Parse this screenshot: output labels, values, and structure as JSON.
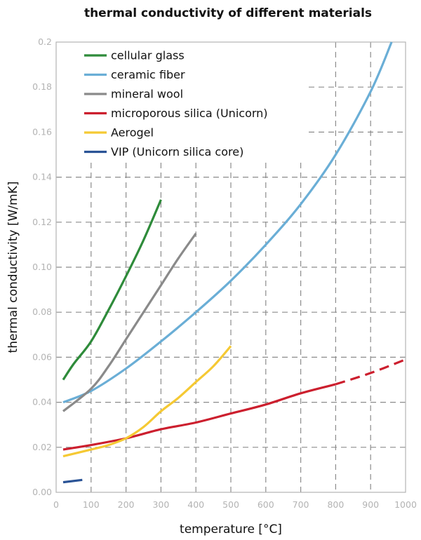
{
  "chart_data": {
    "type": "line",
    "title": "thermal conductivity of different materials",
    "xlabel": "temperature [°C]",
    "ylabel": "thermal conductivity [W/mK]",
    "xlim": [
      0,
      1000
    ],
    "ylim": [
      0,
      0.2
    ],
    "xticks": [
      0,
      100,
      200,
      300,
      400,
      500,
      600,
      700,
      800,
      900,
      1000
    ],
    "xtick_labels": [
      "0",
      "100",
      "200",
      "300",
      "400",
      "500",
      "600",
      "700",
      "800",
      "900",
      "1000"
    ],
    "yticks": [
      0,
      0.02,
      0.04,
      0.06,
      0.08,
      0.1,
      0.12,
      0.14,
      0.16,
      0.18,
      0.2
    ],
    "ytick_labels": [
      "0.00",
      "0.02",
      "0.04",
      "0.06",
      "0.08",
      "0.10",
      "0.12",
      "0.14",
      "0.16",
      "0.18",
      "0.2"
    ],
    "grid": true,
    "legend_position": "top-left",
    "series": [
      {
        "name": "cellular glass",
        "color": "#2e8b3a",
        "x": [
          20,
          50,
          100,
          150,
          200,
          250,
          300
        ],
        "y": [
          0.05,
          0.057,
          0.067,
          0.081,
          0.096,
          0.112,
          0.13
        ]
      },
      {
        "name": "ceramic fiber",
        "color": "#6aaed6",
        "x": [
          20,
          100,
          200,
          300,
          400,
          500,
          600,
          700,
          800,
          900,
          960
        ],
        "y": [
          0.04,
          0.045,
          0.055,
          0.067,
          0.08,
          0.094,
          0.11,
          0.128,
          0.15,
          0.178,
          0.2
        ]
      },
      {
        "name": "mineral wool",
        "color": "#8a8a8a",
        "x": [
          20,
          100,
          150,
          200,
          250,
          300,
          350,
          400
        ],
        "y": [
          0.036,
          0.046,
          0.056,
          0.068,
          0.08,
          0.092,
          0.104,
          0.115
        ]
      },
      {
        "name": "microporous silica (Unicorn)",
        "color": "#cc1f2e",
        "x": [
          20,
          100,
          200,
          300,
          400,
          500,
          600,
          700,
          800
        ],
        "y": [
          0.019,
          0.021,
          0.024,
          0.028,
          0.031,
          0.035,
          0.039,
          0.044,
          0.048
        ],
        "extrapolated": {
          "x": [
            800,
            900,
            1000
          ],
          "y": [
            0.048,
            0.053,
            0.059
          ]
        }
      },
      {
        "name": "Aerogel",
        "color": "#f5c933",
        "x": [
          20,
          100,
          150,
          200,
          250,
          300,
          350,
          400,
          450,
          500
        ],
        "y": [
          0.016,
          0.019,
          0.021,
          0.024,
          0.029,
          0.036,
          0.042,
          0.049,
          0.056,
          0.065
        ]
      },
      {
        "name": "VIP (Unicorn silica core)",
        "color": "#2a5396",
        "x": [
          20,
          75
        ],
        "y": [
          0.0045,
          0.0055
        ]
      }
    ]
  }
}
